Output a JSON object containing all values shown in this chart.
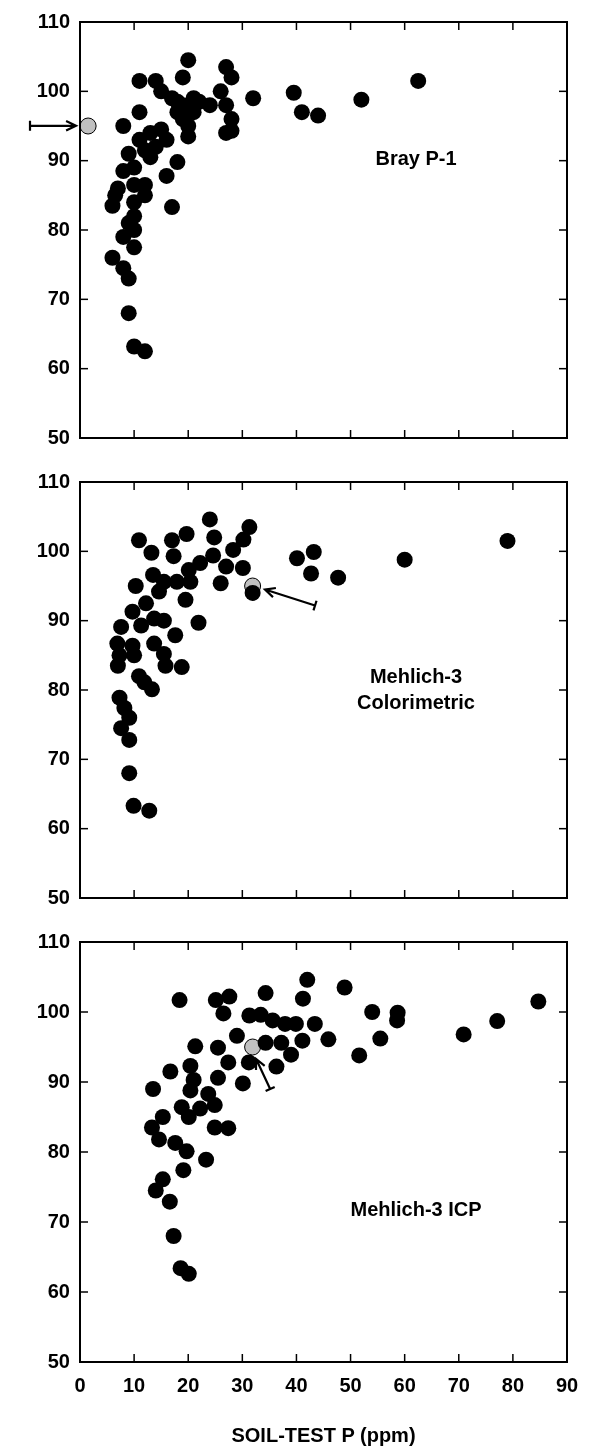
{
  "chart_data": [
    {
      "type": "scatter",
      "annotations": [
        "Bray P-1"
      ],
      "xlim": [
        0,
        90
      ],
      "xticks": [
        0,
        10,
        20,
        30,
        40,
        50,
        60,
        70,
        80,
        90
      ],
      "ylim": [
        50,
        110
      ],
      "yticks": [
        50,
        60,
        70,
        80,
        90,
        100,
        110
      ],
      "tick_labels": "y",
      "marker": "circle",
      "series": [
        {
          "color": "#000000",
          "x": [
            11,
            14,
            20,
            19,
            27,
            28,
            15,
            17,
            18,
            21,
            22,
            24,
            26,
            27,
            28,
            32,
            39.5,
            41,
            44,
            52,
            62.5,
            8,
            11,
            11,
            13,
            14,
            15,
            16,
            18,
            19,
            20,
            20,
            21,
            19,
            12,
            13,
            9,
            10,
            8,
            7,
            6.5,
            6,
            10,
            12,
            12,
            16,
            18,
            17,
            27,
            28,
            10,
            10,
            9,
            10,
            8,
            10,
            6,
            8,
            9,
            9,
            10,
            12
          ],
          "values": [
            101.5,
            101.5,
            104.5,
            102,
            103.5,
            102,
            100,
            99,
            98.5,
            99,
            98.5,
            98,
            100,
            98,
            96,
            99,
            99.8,
            97,
            96.5,
            98.8,
            101.5,
            95,
            97,
            93,
            94,
            92,
            94.5,
            93,
            97,
            96,
            95,
            93.5,
            97,
            98,
            91.5,
            90.5,
            91,
            89,
            88.5,
            86,
            85,
            83.5,
            86.5,
            86.5,
            85,
            87.8,
            89.8,
            83.3,
            94,
            94.3,
            84,
            82,
            81,
            80,
            79,
            77.5,
            76,
            74.5,
            73,
            68,
            63.2,
            62.5
          ]
        },
        {
          "color": "#c0c0c0",
          "x": [
            1.5
          ],
          "values": [
            95
          ]
        }
      ]
    },
    {
      "type": "scatter",
      "annotations": [
        "Mehlich-3\nColorimetric"
      ],
      "xlim": [
        0,
        90
      ],
      "xticks": [
        0,
        10,
        20,
        30,
        40,
        50,
        60,
        70,
        80,
        90
      ],
      "ylim": [
        50,
        110
      ],
      "yticks": [
        50,
        60,
        70,
        80,
        90,
        100,
        110
      ],
      "tick_labels": "y",
      "marker": "circle",
      "series": [
        {
          "color": "#000000",
          "x": [
            24,
            31.3,
            10.9,
            19.7,
            17,
            13.2,
            17.3,
            24.8,
            30.2,
            28.3,
            24.6,
            22.2,
            20.1,
            13.5,
            10.3,
            27,
            30.1,
            26,
            31.9,
            40.1,
            43.2,
            42.7,
            47.7,
            60,
            79,
            15.5,
            17.9,
            20.4,
            14.6,
            19.5,
            12.2,
            9.7,
            13.7,
            15.5,
            21.9,
            7.6,
            11.3,
            6.9,
            9.7,
            13.7,
            17.6,
            7.3,
            10,
            15.5,
            7,
            15.8,
            18.8,
            10.9,
            13.3,
            11.9,
            7.3,
            8.2,
            9.1,
            7.6,
            9.1,
            9.1,
            9.9,
            12.8
          ],
          "values": [
            104.6,
            103.5,
            101.6,
            102.5,
            101.6,
            99.8,
            99.3,
            102,
            101.7,
            100.2,
            99.4,
            98.3,
            97.3,
            96.6,
            95,
            97.8,
            97.6,
            95.4,
            94,
            99,
            99.9,
            96.8,
            96.2,
            98.8,
            101.5,
            95.6,
            95.6,
            95.6,
            94.2,
            93,
            92.5,
            91.3,
            90.3,
            90,
            89.7,
            89.1,
            89.3,
            86.7,
            86.4,
            86.7,
            87.9,
            85,
            85,
            85.2,
            83.5,
            83.5,
            83.3,
            82,
            80.1,
            81.1,
            78.9,
            77.4,
            76,
            74.5,
            72.8,
            68,
            63.3,
            62.6
          ]
        },
        {
          "color": "#c0c0c0",
          "x": [
            31.9
          ],
          "values": [
            95
          ]
        }
      ]
    },
    {
      "type": "scatter",
      "annotations": [
        "Mehlich-3 ICP"
      ],
      "xlabel": "SOIL-TEST P (ppm)",
      "xlim": [
        0,
        90
      ],
      "xticks": [
        0,
        10,
        20,
        30,
        40,
        50,
        60,
        70,
        80,
        90
      ],
      "ylim": [
        50,
        110
      ],
      "yticks": [
        50,
        60,
        70,
        80,
        90,
        100,
        110
      ],
      "marker": "circle",
      "series": [
        {
          "color": "#000000",
          "x": [
            42,
            48.9,
            18.4,
            25.1,
            27.6,
            34.3,
            41.2,
            26.5,
            31.3,
            33.4,
            35.6,
            37.9,
            39.9,
            43.4,
            29,
            34.3,
            37.2,
            41.1,
            45.9,
            39,
            36.3,
            31.2,
            30.1,
            21.3,
            25.5,
            20.4,
            27.4,
            16.7,
            13.5,
            21,
            25.5,
            20.4,
            23.7,
            18.8,
            24.9,
            22.2,
            20.1,
            15.3,
            13.3,
            24.9,
            27.4,
            14.6,
            17.6,
            19.7,
            23.3,
            19.1,
            15.3,
            14,
            16.6,
            17.3,
            18.6,
            20.1,
            54,
            58.7,
            58.6,
            55.5,
            51.6,
            70.9,
            77.1,
            84.7
          ],
          "values": [
            104.6,
            103.5,
            101.7,
            101.7,
            102.2,
            102.7,
            101.9,
            99.8,
            99.5,
            99.6,
            98.8,
            98.3,
            98.3,
            98.3,
            96.6,
            95.6,
            95.6,
            95.9,
            96.1,
            93.9,
            92.2,
            92.8,
            89.8,
            95.1,
            94.9,
            92.3,
            92.8,
            91.5,
            89,
            90.3,
            90.6,
            88.8,
            88.3,
            86.4,
            86.7,
            86.2,
            85,
            85,
            83.5,
            83.5,
            83.4,
            81.8,
            81.3,
            80.1,
            78.9,
            77.4,
            76.1,
            74.5,
            72.9,
            68,
            63.4,
            62.6,
            100,
            99.9,
            98.8,
            96.2,
            93.8,
            96.8,
            98.7,
            101.5
          ]
        },
        {
          "color": "#c0c0c0",
          "x": [
            31.9
          ],
          "values": [
            95
          ]
        }
      ]
    }
  ]
}
